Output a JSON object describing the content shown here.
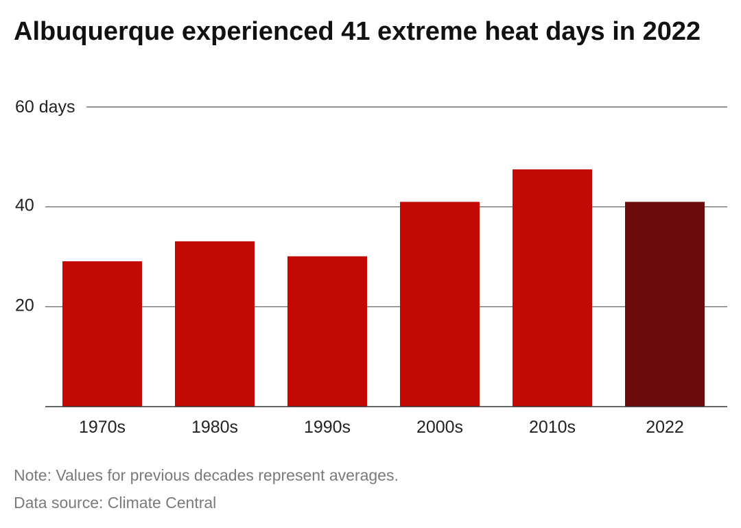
{
  "chart_data": {
    "type": "bar",
    "title": "Albuquerque experienced 41 extreme heat days in 2022",
    "categories": [
      "1970s",
      "1980s",
      "1990s",
      "2000s",
      "2010s",
      "2022"
    ],
    "values": [
      29.1,
      33.1,
      30.1,
      41,
      47.5,
      41
    ],
    "ylim": [
      0,
      60
    ],
    "yticks": [
      20,
      40,
      60
    ],
    "ytick_labels": [
      "20",
      "40",
      "60 days"
    ],
    "grid": true,
    "bar_colors": [
      "#c20a04",
      "#c20a04",
      "#c20a04",
      "#c20a04",
      "#c20a04",
      "#6b0a0a"
    ],
    "note": "Note: Values for previous decades represent averages.",
    "source": "Data source: Climate Central"
  },
  "colors": {
    "bar": "#c20a04",
    "highlight_bar": "#6b0a0a",
    "gridline": "#555555",
    "footer_text": "#7a7a7a"
  }
}
